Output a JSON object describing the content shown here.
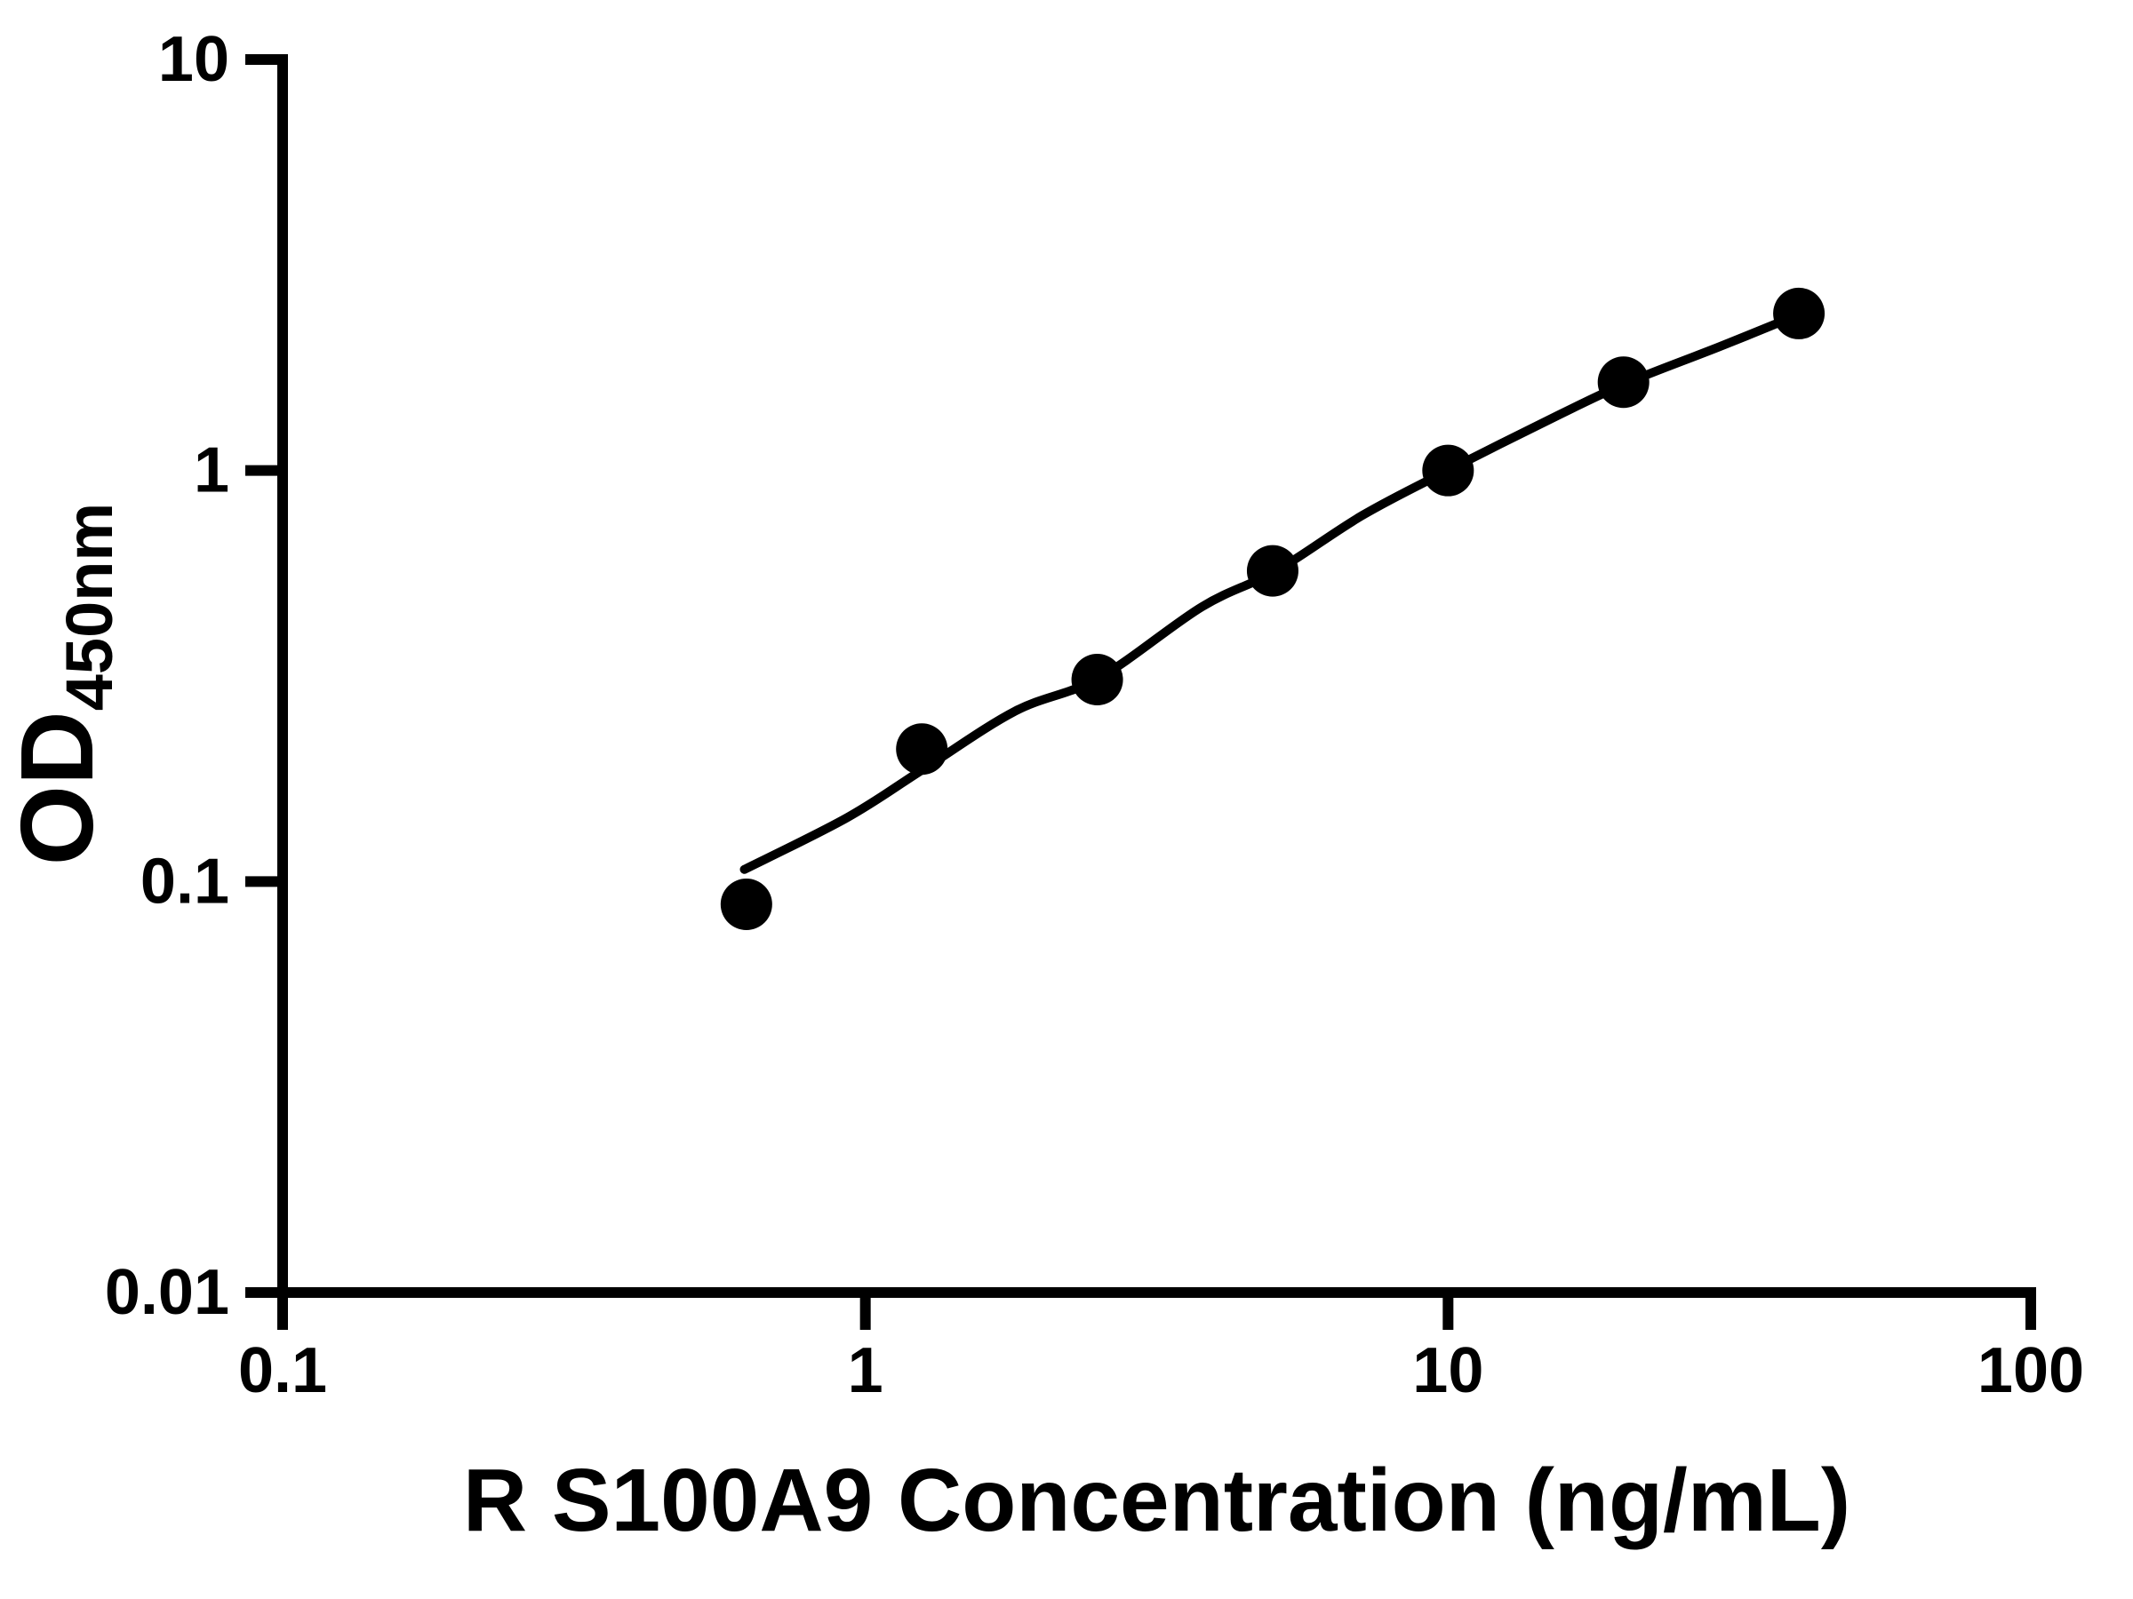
{
  "chart_data": {
    "type": "scatter",
    "title": "",
    "xlabel": "R S100A9 Concentration (ng/mL)",
    "ylabel_main": "OD",
    "ylabel_sub": "450nm",
    "x_scale": "log",
    "y_scale": "log",
    "xlim": [
      0.1,
      100
    ],
    "ylim": [
      0.01,
      10
    ],
    "grid": "off",
    "legend": "none",
    "colors": {
      "foreground": "#000000",
      "background": "#ffffff"
    },
    "x_ticks": [
      {
        "value": 0.1,
        "label": "0.1"
      },
      {
        "value": 1,
        "label": "1"
      },
      {
        "value": 10,
        "label": "10"
      },
      {
        "value": 100,
        "label": "100"
      }
    ],
    "y_ticks": [
      {
        "value": 0.01,
        "label": "0.01"
      },
      {
        "value": 0.1,
        "label": "0.1"
      },
      {
        "value": 1,
        "label": "1"
      },
      {
        "value": 10,
        "label": "10"
      }
    ],
    "series": [
      {
        "name": "standard-curve-points",
        "marker": "filled-circle",
        "color": "#000000",
        "points": [
          [
            0.625,
            0.088
          ],
          [
            1.25,
            0.21
          ],
          [
            2.5,
            0.31
          ],
          [
            5,
            0.57
          ],
          [
            10,
            1.0
          ],
          [
            20,
            1.64
          ],
          [
            40,
            2.41
          ]
        ]
      }
    ],
    "fit_curve": [
      [
        0.62,
        0.107
      ],
      [
        0.93,
        0.143
      ],
      [
        1.26,
        0.188
      ],
      [
        1.81,
        0.26
      ],
      [
        2.52,
        0.313
      ],
      [
        3.78,
        0.466
      ],
      [
        5.07,
        0.57
      ],
      [
        7.13,
        0.778
      ],
      [
        10.1,
        1.008
      ],
      [
        15.5,
        1.366
      ],
      [
        20.4,
        1.64
      ],
      [
        29.2,
        2.0
      ],
      [
        40.4,
        2.41
      ]
    ]
  }
}
